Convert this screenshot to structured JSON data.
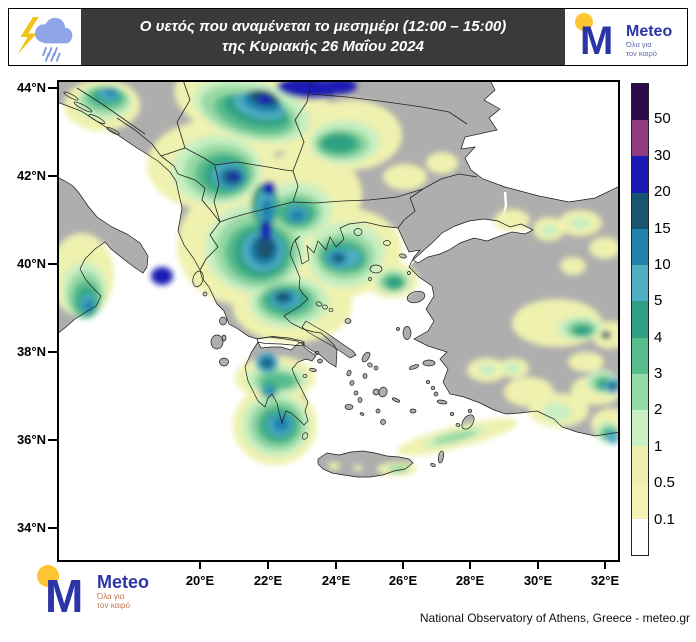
{
  "header": {
    "title_line1": "Ο υετός που αναμένεται το μεσημέρι (12:00 – 15:00)",
    "title_line2": "της Κυριακής 26 Μαΐου 2024",
    "bg_color": "#3A3A3A"
  },
  "logo": {
    "m_letter": "M",
    "wordmark": "Meteo",
    "tagline_line1": "Όλα για",
    "tagline_line2": "τον καιρό",
    "m_color": "#2B35A6",
    "circle_color": "#FFC633",
    "wordmark_color": "#2B35A6",
    "tagline_color_header": "#5E6BA8",
    "tagline_color_footer": "#C4764F"
  },
  "map": {
    "lat_labels": [
      "44°N",
      "42°N",
      "40°N",
      "38°N",
      "36°N",
      "34°N"
    ],
    "lon_labels": [
      "20°E",
      "22°E",
      "24°E",
      "26°E",
      "28°E",
      "30°E",
      "32°E"
    ],
    "sea_color": "#FFFFFF",
    "land_color": "#AEAEAE",
    "coast_color": "#1A1A1A",
    "precip_palette": [
      "#EFF1AF",
      "#C9EFC2",
      "#97D9A5",
      "#57BC8C",
      "#2FA183",
      "#4FAEC4",
      "#1F83AE",
      "#1A5570",
      "#1A1AB4"
    ]
  },
  "legend": {
    "labels": [
      "50",
      "30",
      "20",
      "15",
      "10",
      "5",
      "4",
      "3",
      "2",
      "1",
      "0.5",
      "0.1"
    ],
    "colors": [
      "#2E0B4E",
      "#8C3C7F",
      "#1A1AB4",
      "#1A5570",
      "#1F83AE",
      "#4FAEC4",
      "#2FA183",
      "#57BC8C",
      "#97D9A5",
      "#C9EFC2",
      "#ECEFA9",
      "#F0F2B6",
      "#FFFFFF"
    ]
  },
  "footer": {
    "attribution": "National Observatory of Athens, Greece - meteo.gr"
  }
}
